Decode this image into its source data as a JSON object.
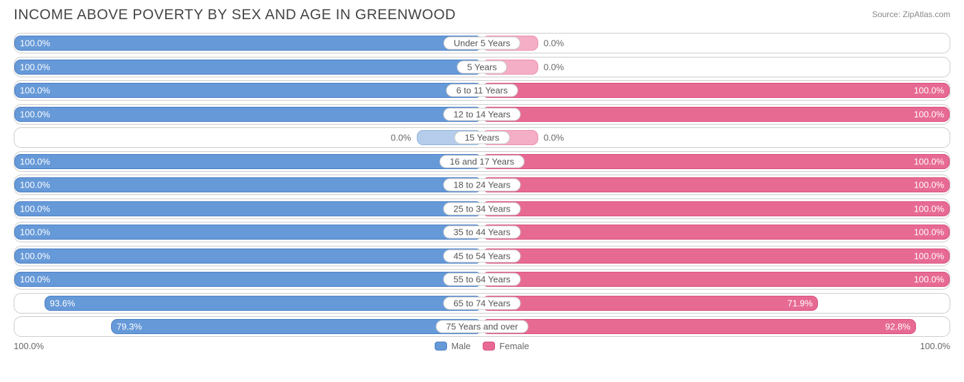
{
  "title": "INCOME ABOVE POVERTY BY SEX AND AGE IN GREENWOOD",
  "source": "Source: ZipAtlas.com",
  "colors": {
    "male_fill": "#6699d8",
    "male_border": "#4a7fc4",
    "male_light_fill": "#b5cdea",
    "male_light_border": "#8fb3df",
    "female_fill": "#e76a93",
    "female_border": "#d94f7e",
    "female_light_fill": "#f4aec5",
    "female_light_border": "#ec8fae",
    "text_dark": "#666666",
    "text_light": "#ffffff"
  },
  "axis": {
    "left_label": "100.0%",
    "right_label": "100.0%"
  },
  "legend": {
    "male": "Male",
    "female": "Female"
  },
  "rows": [
    {
      "age": "Under 5 Years",
      "male": 100.0,
      "female": 0.0,
      "male_label": "100.0%",
      "female_label": "0.0%",
      "male_light": false,
      "female_light": true,
      "female_stub": 12
    },
    {
      "age": "5 Years",
      "male": 100.0,
      "female": 0.0,
      "male_label": "100.0%",
      "female_label": "0.0%",
      "male_light": false,
      "female_light": true,
      "female_stub": 12
    },
    {
      "age": "6 to 11 Years",
      "male": 100.0,
      "female": 100.0,
      "male_label": "100.0%",
      "female_label": "100.0%",
      "male_light": false,
      "female_light": false,
      "female_stub": 0
    },
    {
      "age": "12 to 14 Years",
      "male": 100.0,
      "female": 100.0,
      "male_label": "100.0%",
      "female_label": "100.0%",
      "male_light": false,
      "female_light": false,
      "female_stub": 0
    },
    {
      "age": "15 Years",
      "male": 0.0,
      "female": 0.0,
      "male_label": "0.0%",
      "female_label": "0.0%",
      "male_light": true,
      "female_light": true,
      "male_stub": 14,
      "female_stub": 12
    },
    {
      "age": "16 and 17 Years",
      "male": 100.0,
      "female": 100.0,
      "male_label": "100.0%",
      "female_label": "100.0%",
      "male_light": false,
      "female_light": false,
      "female_stub": 0
    },
    {
      "age": "18 to 24 Years",
      "male": 100.0,
      "female": 100.0,
      "male_label": "100.0%",
      "female_label": "100.0%",
      "male_light": false,
      "female_light": false,
      "female_stub": 0
    },
    {
      "age": "25 to 34 Years",
      "male": 100.0,
      "female": 100.0,
      "male_label": "100.0%",
      "female_label": "100.0%",
      "male_light": false,
      "female_light": false,
      "female_stub": 0
    },
    {
      "age": "35 to 44 Years",
      "male": 100.0,
      "female": 100.0,
      "male_label": "100.0%",
      "female_label": "100.0%",
      "male_light": false,
      "female_light": false,
      "female_stub": 0
    },
    {
      "age": "45 to 54 Years",
      "male": 100.0,
      "female": 100.0,
      "male_label": "100.0%",
      "female_label": "100.0%",
      "male_light": false,
      "female_light": false,
      "female_stub": 0
    },
    {
      "age": "55 to 64 Years",
      "male": 100.0,
      "female": 100.0,
      "male_label": "100.0%",
      "female_label": "100.0%",
      "male_light": false,
      "female_light": false,
      "female_stub": 0
    },
    {
      "age": "65 to 74 Years",
      "male": 93.6,
      "female": 71.9,
      "male_label": "93.6%",
      "female_label": "71.9%",
      "male_light": false,
      "female_light": false,
      "female_stub": 0
    },
    {
      "age": "75 Years and over",
      "male": 79.3,
      "female": 92.8,
      "male_label": "79.3%",
      "female_label": "92.8%",
      "male_light": false,
      "female_light": false,
      "female_stub": 0
    }
  ]
}
